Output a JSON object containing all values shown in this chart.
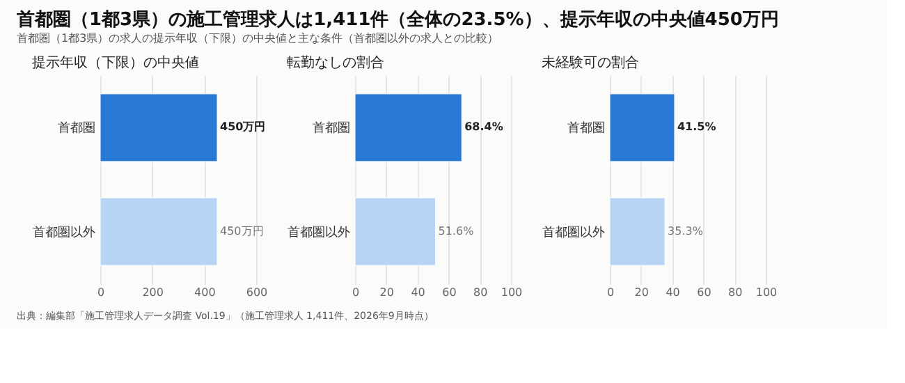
{
  "chart_data": [
    {
      "type": "other",
      "title": "首都圏（1都3県）の施工管理求人は1,411件（全体の23.5%）、提示年収の中央値450万円",
      "subtitle": "首都圏（1都3県）の求人の提示年収（下限）の中央値と主な条件（首都圏以外の求人との比較）",
      "annotations": [
        "出典：編集部「施工管理求人データ調査 Vol.19」（施工管理求人 1,411件、2026年9月時点）"
      ]
    },
    {
      "type": "bar",
      "orientation": "horizontal",
      "title": "提示年収（下限）の中央値",
      "categories": [
        "首都圏",
        "首都圏以外"
      ],
      "values": [
        450,
        450
      ],
      "colors": [
        "#2878d6",
        "#b8d4f5"
      ],
      "value_labels": [
        "450万円",
        "450万円"
      ],
      "xlim": [
        0,
        600
      ],
      "xticks": [
        0,
        200,
        400,
        600
      ],
      "grid": "x"
    },
    {
      "type": "bar",
      "orientation": "horizontal",
      "title": "転勤なしの割合",
      "categories": [
        "首都圏",
        "首都圏以外"
      ],
      "values": [
        68.4,
        51.6
      ],
      "colors": [
        "#2878d6",
        "#b8d4f5"
      ],
      "value_labels": [
        "68.4%",
        "51.6%"
      ],
      "xlim": [
        0,
        100
      ],
      "xticks": [
        0,
        20,
        40,
        60,
        80,
        100
      ],
      "grid": "x"
    },
    {
      "type": "bar",
      "orientation": "horizontal",
      "title": "未経験可の割合",
      "categories": [
        "首都圏",
        "首都圏以外"
      ],
      "values": [
        41.5,
        35.3
      ],
      "colors": [
        "#2878d6",
        "#b8d4f5"
      ],
      "value_labels": [
        "41.5%",
        "35.3%"
      ],
      "xlim": [
        0,
        100
      ],
      "xticks": [
        0,
        20,
        40,
        60,
        80,
        100
      ],
      "grid": "x"
    }
  ]
}
